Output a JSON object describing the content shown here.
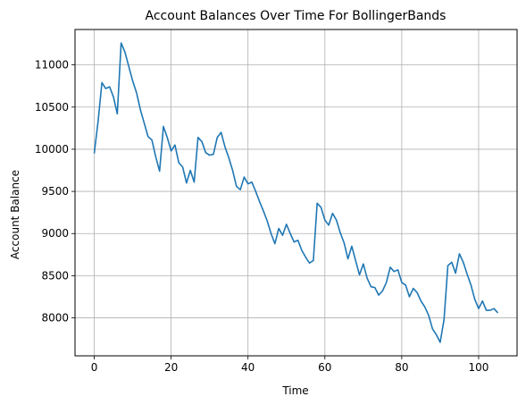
{
  "chart_data": {
    "type": "line",
    "title": "Account Balances Over Time For BollingerBands",
    "xlabel": "Time",
    "ylabel": "Account Balance",
    "xlim": [
      -5,
      110
    ],
    "ylim": [
      7550,
      11420
    ],
    "xticks": [
      0,
      20,
      40,
      60,
      80,
      100
    ],
    "yticks": [
      8000,
      8500,
      9000,
      9500,
      10000,
      10500,
      11000
    ],
    "grid": true,
    "line_color": "#1f77b4",
    "series": [
      {
        "x": [
          0,
          1,
          2,
          3,
          4,
          5,
          6,
          7,
          8,
          9,
          10,
          11,
          12,
          13,
          14,
          15,
          16,
          17,
          18,
          19,
          20,
          21,
          22,
          23,
          24,
          25,
          26,
          27,
          28,
          29,
          30,
          31,
          32,
          33,
          34,
          35,
          36,
          37,
          38,
          39,
          40,
          41,
          42,
          43,
          44,
          45,
          46,
          47,
          48,
          49,
          50,
          51,
          52,
          53,
          54,
          55,
          56,
          57,
          58,
          59,
          60,
          61,
          62,
          63,
          64,
          65,
          66,
          67,
          68,
          69,
          70,
          71,
          72,
          73,
          74,
          75,
          76,
          77,
          78,
          79,
          80,
          81,
          82,
          83,
          84,
          85,
          86,
          87,
          88,
          89,
          90,
          91,
          92,
          93,
          94,
          95,
          96,
          97,
          98,
          99,
          100,
          101,
          102,
          103,
          104,
          105
        ],
        "values": [
          9950,
          10330,
          10790,
          10720,
          10740,
          10620,
          10420,
          11260,
          11150,
          10980,
          10810,
          10670,
          10470,
          10310,
          10150,
          10110,
          9910,
          9740,
          10270,
          10140,
          9980,
          10050,
          9840,
          9790,
          9600,
          9750,
          9610,
          10140,
          10090,
          9960,
          9930,
          9940,
          10140,
          10200,
          10030,
          9900,
          9750,
          9560,
          9520,
          9670,
          9590,
          9610,
          9500,
          9380,
          9270,
          9150,
          9000,
          8880,
          9060,
          8980,
          9110,
          9000,
          8900,
          8920,
          8800,
          8720,
          8650,
          8680,
          9360,
          9310,
          9160,
          9100,
          9240,
          9160,
          9010,
          8890,
          8700,
          8850,
          8680,
          8510,
          8640,
          8470,
          8370,
          8360,
          8270,
          8320,
          8420,
          8600,
          8550,
          8570,
          8420,
          8390,
          8250,
          8350,
          8300,
          8200,
          8130,
          8030,
          7870,
          7800,
          7710,
          7980,
          8620,
          8660,
          8530,
          8760,
          8660,
          8520,
          8390,
          8220,
          8110,
          8200,
          8090,
          8090,
          8110,
          8060
        ]
      }
    ]
  }
}
